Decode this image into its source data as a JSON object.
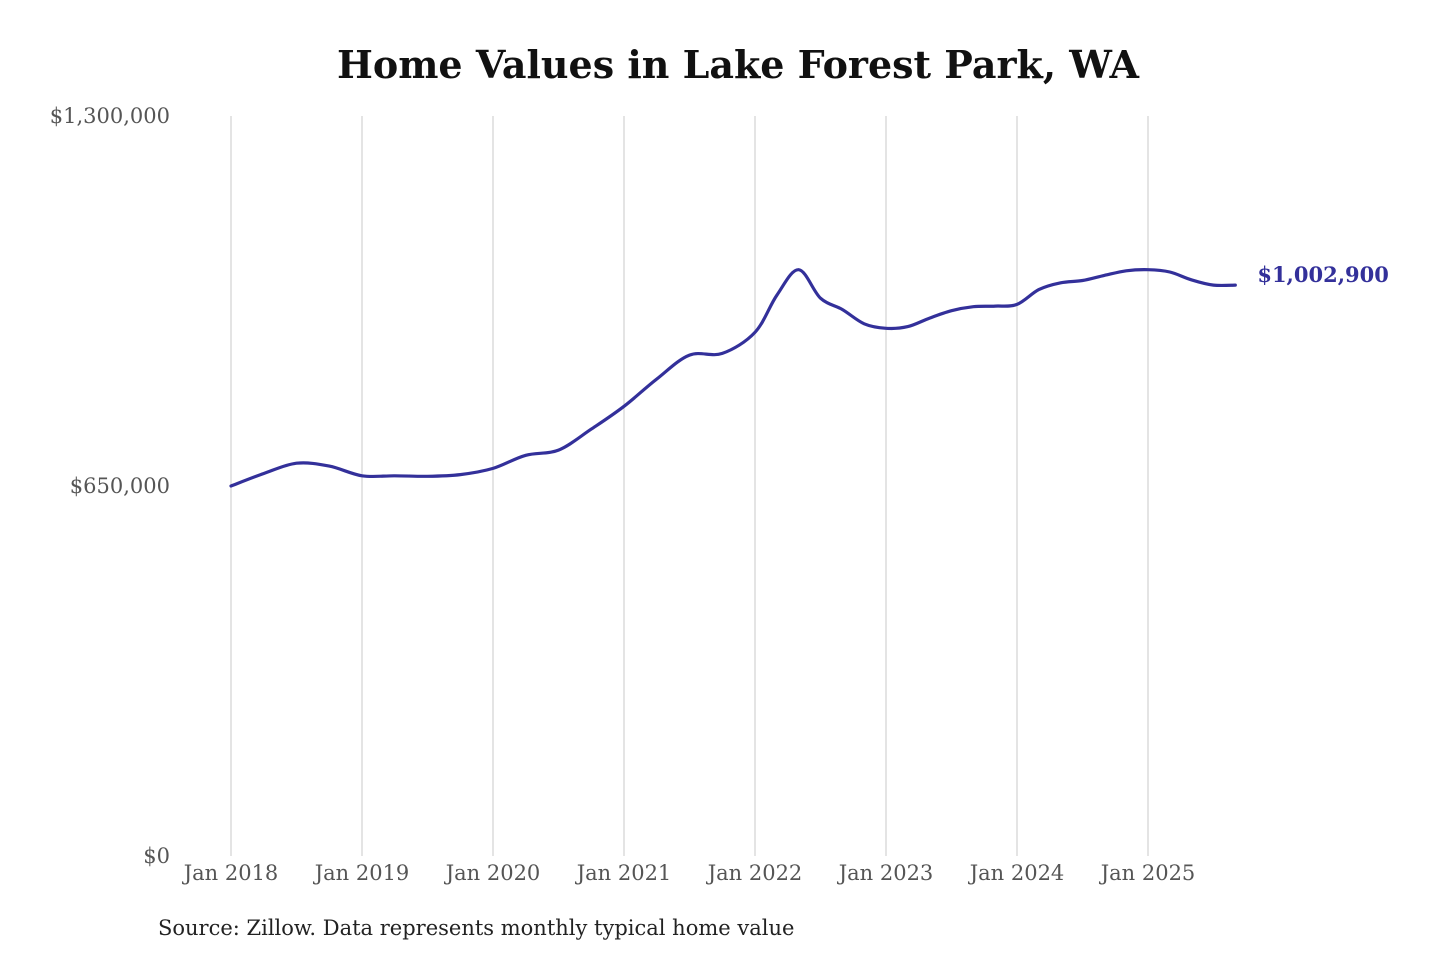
{
  "chart_data": {
    "type": "line",
    "title": "Home Values in Lake Forest Park, WA",
    "source_note": "Source: Zillow. Data represents monthly typical home value",
    "x_ticks": [
      "Jan 2018",
      "Jan 2019",
      "Jan 2020",
      "Jan 2021",
      "Jan 2022",
      "Jan 2023",
      "Jan 2024",
      "Jan 2025"
    ],
    "y_ticks": [
      "$0",
      "$650,000",
      "$1,300,000"
    ],
    "ylim": [
      0,
      1300000
    ],
    "grid": "vertical",
    "line_color": "#33309a",
    "end_label": "$1,002,900",
    "series": [
      {
        "points": [
          [
            "2018-01",
            650000
          ],
          [
            "2018-04",
            672000
          ],
          [
            "2018-07",
            690000
          ],
          [
            "2018-10",
            685000
          ],
          [
            "2019-01",
            668000
          ],
          [
            "2019-04",
            668000
          ],
          [
            "2019-07",
            667000
          ],
          [
            "2019-10",
            670000
          ],
          [
            "2020-01",
            681000
          ],
          [
            "2020-04",
            704000
          ],
          [
            "2020-07",
            713000
          ],
          [
            "2020-10",
            750000
          ],
          [
            "2021-01",
            790000
          ],
          [
            "2021-04",
            838000
          ],
          [
            "2021-07",
            880000
          ],
          [
            "2021-10",
            883000
          ],
          [
            "2022-01",
            920000
          ],
          [
            "2022-03",
            985000
          ],
          [
            "2022-05",
            1030000
          ],
          [
            "2022-07",
            980000
          ],
          [
            "2022-09",
            960000
          ],
          [
            "2022-11",
            935000
          ],
          [
            "2023-01",
            927000
          ],
          [
            "2023-03",
            930000
          ],
          [
            "2023-05",
            945000
          ],
          [
            "2023-07",
            958000
          ],
          [
            "2023-09",
            965000
          ],
          [
            "2023-11",
            966000
          ],
          [
            "2024-01",
            969000
          ],
          [
            "2024-03",
            995000
          ],
          [
            "2024-05",
            1007000
          ],
          [
            "2024-07",
            1011000
          ],
          [
            "2024-09",
            1020000
          ],
          [
            "2024-11",
            1028000
          ],
          [
            "2025-01",
            1030000
          ],
          [
            "2025-03",
            1026000
          ],
          [
            "2025-05",
            1012000
          ],
          [
            "2025-07",
            1003000
          ],
          [
            "2025-09",
            1002900
          ]
        ]
      }
    ]
  }
}
